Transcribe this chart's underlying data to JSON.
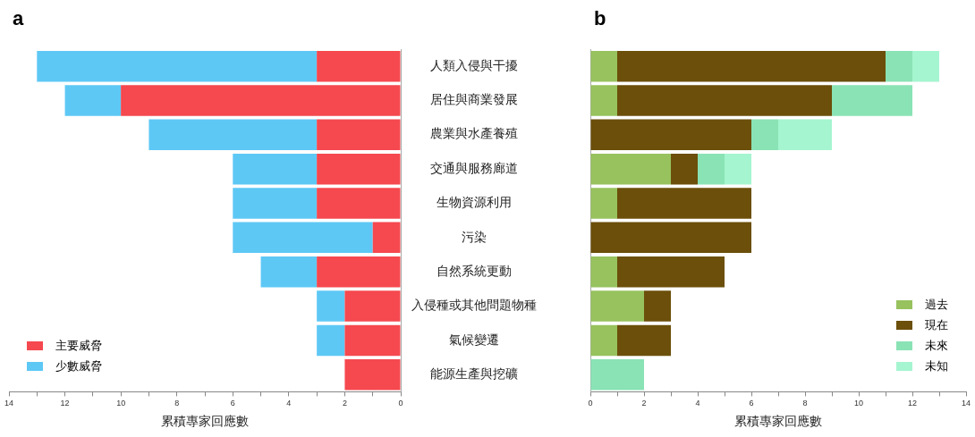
{
  "chart_data": [
    {
      "type": "bar",
      "title": "a",
      "orientation": "horizontal",
      "stacked": true,
      "xlabel": "累積專家回應數",
      "categories": [
        "人類入侵與干擾",
        "居住與商業發展",
        "農業與水產養殖",
        "交通與服務廊道",
        "生物資源利用",
        "污染",
        "自然系統更動",
        "入侵種或其他問題物種",
        "氣候變遷",
        "能源生產與挖礦"
      ],
      "series": [
        {
          "name": "主要威脅",
          "color": "#f5484f",
          "values": [
            3,
            10,
            3,
            3,
            3,
            1,
            3,
            2,
            2,
            2
          ]
        },
        {
          "name": "少數威脅",
          "color": "#5ec8f5",
          "values": [
            10,
            2,
            6,
            3,
            3,
            5,
            2,
            1,
            1,
            0
          ]
        }
      ],
      "xlim": [
        14,
        0
      ],
      "xticks": [
        14,
        {
          "value": 13,
          "label": null
        },
        12,
        {
          "value": 11,
          "label": null
        },
        10,
        {
          "value": 9,
          "label": null
        },
        8,
        {
          "value": 7,
          "label": null
        },
        6,
        {
          "value": 5,
          "label": null
        },
        4,
        {
          "value": 3,
          "label": null
        },
        2,
        {
          "value": 1,
          "label": null
        },
        0
      ],
      "legend": "bottom left"
    },
    {
      "type": "bar",
      "title": "b",
      "orientation": "horizontal",
      "stacked": true,
      "xlabel": "累積專家回應數",
      "categories": [
        null,
        null,
        null,
        null,
        null,
        null,
        null,
        null,
        null,
        null
      ],
      "series": [
        {
          "name": "過去",
          "color": "#97c25e",
          "values": [
            1,
            1,
            0,
            3,
            1,
            0,
            1,
            2,
            1,
            0
          ]
        },
        {
          "name": "現在",
          "color": "#6b4f0a",
          "values": [
            10,
            8,
            6,
            1,
            5,
            6,
            4,
            1,
            2,
            0
          ]
        },
        {
          "name": "未來",
          "color": "#8ae3b5",
          "values": [
            1,
            3,
            1,
            1,
            0,
            0,
            0,
            0,
            0,
            2
          ]
        },
        {
          "name": "未知",
          "color": "#a5f5d0",
          "values": [
            1,
            0,
            2,
            1,
            0,
            0,
            0,
            0,
            0,
            0
          ]
        }
      ],
      "xlim": [
        0,
        14
      ],
      "xticks": [
        0,
        {
          "value": 1,
          "label": null
        },
        2,
        {
          "value": 3,
          "label": null
        },
        4,
        {
          "value": 5,
          "label": null
        },
        6,
        {
          "value": 7,
          "label": null
        },
        8,
        {
          "value": 9,
          "label": null
        },
        10,
        {
          "value": 11,
          "label": null
        },
        12,
        {
          "value": 13,
          "label": null
        },
        14
      ],
      "legend": "bottom right",
      "tick_labels": "x"
    }
  ]
}
